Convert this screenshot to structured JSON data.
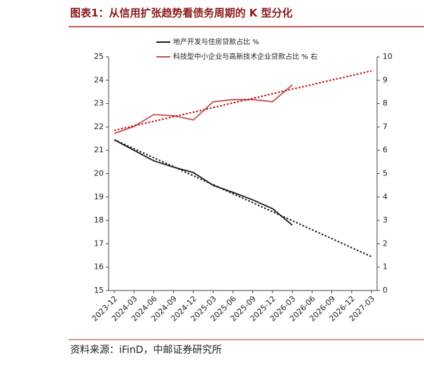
{
  "chart_data": {
    "type": "line",
    "title": "图表1：从信用扩张趋势看债务周期的 K 型分化",
    "source": "资料来源：iFinD，中邮证券研究所",
    "categories": [
      "2023-12",
      "2024-03",
      "2024-06",
      "2024-09",
      "2024-12",
      "2025-03",
      "2025-06",
      "2025-09",
      "2025-12",
      "2026-03",
      "2026-06",
      "2026-09",
      "2026-12",
      "2027-03"
    ],
    "ylim": [
      15,
      25
    ],
    "yticks": [
      15,
      16,
      17,
      18,
      19,
      20,
      21,
      22,
      23,
      24,
      25
    ],
    "y2lim": [
      0,
      10
    ],
    "y2ticks": [
      0,
      1,
      2,
      3,
      4,
      5,
      6,
      7,
      8,
      9,
      10
    ],
    "legend": "top",
    "series": [
      {
        "name": "地产开发与住房贷款占比 %",
        "color": "#1a1a1a",
        "style": "solid",
        "values": [
          21.45,
          21.0,
          20.55,
          20.28,
          20.05,
          19.5,
          19.2,
          18.88,
          18.5,
          17.8,
          null,
          null,
          null,
          null
        ]
      },
      {
        "name": "科技型中小企业与高新技术企业贷款占比 % 右",
        "color": "#c0504d",
        "style": "solid",
        "axis": "y2",
        "values": [
          6.72,
          7.02,
          7.53,
          7.48,
          7.3,
          8.08,
          8.17,
          8.17,
          8.08,
          8.8,
          null,
          null,
          null,
          null
        ]
      },
      {
        "color": "#1a1a1a",
        "style": "dotted",
        "values": [
          21.45,
          21.07,
          20.68,
          20.3,
          19.91,
          19.53,
          19.14,
          18.76,
          18.37,
          17.99,
          17.6,
          17.22,
          16.83,
          16.45
        ]
      },
      {
        "color": "#c00000",
        "style": "dotted",
        "axis": "y2",
        "values": [
          6.85,
          7.05,
          7.24,
          7.44,
          7.63,
          7.83,
          8.03,
          8.22,
          8.42,
          8.62,
          8.81,
          9.01,
          9.2,
          9.4
        ]
      }
    ]
  }
}
